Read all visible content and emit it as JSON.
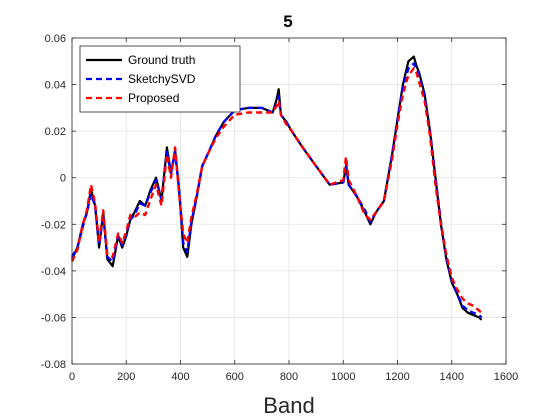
{
  "chart_data": {
    "type": "line",
    "title": "5",
    "xlabel": "Band",
    "ylabel": "",
    "xlim": [
      0,
      1600
    ],
    "ylim": [
      -0.08,
      0.06
    ],
    "xticks": [
      0,
      200,
      400,
      600,
      800,
      1000,
      1200,
      1400,
      1600
    ],
    "yticks": [
      -0.08,
      -0.06,
      -0.04,
      -0.02,
      0,
      0.02,
      0.04,
      0.06
    ],
    "grid": true,
    "legend_position": "top-left",
    "series": [
      {
        "name": "Ground truth",
        "color": "#000000",
        "dash": "solid",
        "x": [
          0,
          20,
          40,
          55,
          70,
          85,
          100,
          115,
          130,
          150,
          170,
          185,
          200,
          215,
          230,
          250,
          270,
          290,
          310,
          330,
          350,
          365,
          380,
          395,
          410,
          425,
          440,
          460,
          480,
          500,
          530,
          560,
          600,
          650,
          700,
          740,
          755,
          762,
          770,
          790,
          810,
          850,
          900,
          950,
          1000,
          1010,
          1020,
          1050,
          1080,
          1100,
          1120,
          1150,
          1180,
          1200,
          1220,
          1240,
          1260,
          1270,
          1280,
          1300,
          1320,
          1340,
          1360,
          1380,
          1400,
          1420,
          1440,
          1460,
          1480,
          1500,
          1510
        ],
        "y": [
          -0.035,
          -0.03,
          -0.02,
          -0.015,
          -0.005,
          -0.012,
          -0.03,
          -0.015,
          -0.035,
          -0.038,
          -0.025,
          -0.03,
          -0.025,
          -0.018,
          -0.015,
          -0.01,
          -0.012,
          -0.005,
          0.0,
          -0.01,
          0.013,
          0.002,
          0.012,
          -0.005,
          -0.03,
          -0.034,
          -0.02,
          -0.008,
          0.005,
          0.01,
          0.018,
          0.024,
          0.029,
          0.03,
          0.03,
          0.028,
          0.034,
          0.038,
          0.027,
          0.024,
          0.02,
          0.013,
          0.005,
          -0.003,
          -0.002,
          0.005,
          -0.003,
          -0.008,
          -0.015,
          -0.02,
          -0.015,
          -0.01,
          0.01,
          0.025,
          0.04,
          0.05,
          0.052,
          0.048,
          0.045,
          0.036,
          0.02,
          0.0,
          -0.02,
          -0.035,
          -0.045,
          -0.05,
          -0.056,
          -0.058,
          -0.059,
          -0.06,
          -0.061
        ]
      },
      {
        "name": "SketchySVD",
        "color": "#0000ff",
        "dash": "dashed",
        "x": [
          0,
          20,
          40,
          55,
          70,
          85,
          100,
          115,
          130,
          150,
          170,
          185,
          200,
          215,
          230,
          250,
          270,
          290,
          310,
          330,
          350,
          365,
          380,
          395,
          410,
          425,
          440,
          460,
          480,
          500,
          530,
          560,
          600,
          650,
          700,
          740,
          755,
          762,
          770,
          790,
          810,
          850,
          900,
          950,
          1000,
          1010,
          1020,
          1050,
          1080,
          1100,
          1120,
          1150,
          1180,
          1200,
          1220,
          1240,
          1260,
          1270,
          1280,
          1300,
          1320,
          1340,
          1360,
          1380,
          1400,
          1420,
          1440,
          1460,
          1480,
          1500,
          1510
        ],
        "y": [
          -0.034,
          -0.03,
          -0.021,
          -0.015,
          -0.007,
          -0.012,
          -0.029,
          -0.016,
          -0.034,
          -0.036,
          -0.025,
          -0.029,
          -0.024,
          -0.018,
          -0.016,
          -0.011,
          -0.012,
          -0.006,
          -0.001,
          -0.009,
          0.011,
          0.002,
          0.011,
          -0.005,
          -0.028,
          -0.032,
          -0.019,
          -0.008,
          0.005,
          0.01,
          0.018,
          0.024,
          0.029,
          0.03,
          0.03,
          0.028,
          0.032,
          0.035,
          0.027,
          0.024,
          0.02,
          0.013,
          0.005,
          -0.003,
          -0.002,
          0.006,
          -0.003,
          -0.008,
          -0.014,
          -0.019,
          -0.015,
          -0.01,
          0.01,
          0.025,
          0.039,
          0.047,
          0.049,
          0.047,
          0.044,
          0.035,
          0.02,
          0.0,
          -0.019,
          -0.034,
          -0.044,
          -0.05,
          -0.055,
          -0.057,
          -0.058,
          -0.059,
          -0.06
        ]
      },
      {
        "name": "Proposed",
        "color": "#ff0000",
        "dash": "dashed",
        "x": [
          0,
          20,
          40,
          55,
          70,
          85,
          100,
          115,
          130,
          150,
          170,
          185,
          200,
          215,
          230,
          250,
          270,
          290,
          310,
          330,
          350,
          365,
          380,
          395,
          410,
          425,
          440,
          460,
          480,
          500,
          530,
          560,
          600,
          650,
          700,
          740,
          755,
          762,
          770,
          790,
          810,
          850,
          900,
          950,
          1000,
          1010,
          1020,
          1050,
          1080,
          1100,
          1120,
          1150,
          1180,
          1200,
          1220,
          1240,
          1260,
          1270,
          1280,
          1300,
          1320,
          1340,
          1360,
          1380,
          1400,
          1420,
          1440,
          1460,
          1480,
          1500,
          1510
        ],
        "y": [
          -0.036,
          -0.031,
          -0.02,
          -0.014,
          -0.003,
          -0.011,
          -0.028,
          -0.014,
          -0.033,
          -0.034,
          -0.024,
          -0.028,
          -0.023,
          -0.016,
          -0.017,
          -0.015,
          -0.016,
          -0.009,
          -0.003,
          -0.012,
          0.01,
          0.0,
          0.013,
          -0.007,
          -0.024,
          -0.028,
          -0.017,
          -0.007,
          0.005,
          0.01,
          0.017,
          0.022,
          0.027,
          0.028,
          0.028,
          0.028,
          0.031,
          0.033,
          0.027,
          0.023,
          0.02,
          0.013,
          0.005,
          -0.003,
          -0.001,
          0.009,
          -0.001,
          -0.008,
          -0.016,
          -0.018,
          -0.015,
          -0.01,
          0.008,
          0.023,
          0.036,
          0.044,
          0.047,
          0.045,
          0.041,
          0.033,
          0.018,
          -0.003,
          -0.02,
          -0.033,
          -0.043,
          -0.048,
          -0.052,
          -0.054,
          -0.055,
          -0.057,
          -0.058
        ]
      }
    ]
  }
}
